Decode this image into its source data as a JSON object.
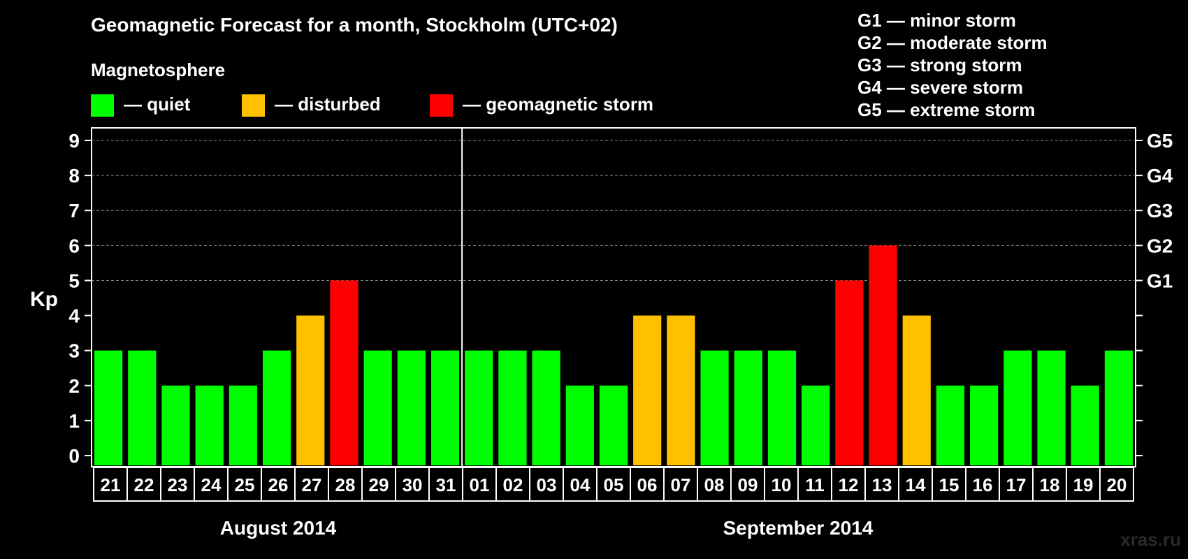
{
  "header": {
    "title": "Geomagnetic Forecast for a month, Stockholm (UTC+02)",
    "subtitle": "Magnetosphere"
  },
  "legend": {
    "items": [
      {
        "label": "— quiet",
        "color": "#00ff00"
      },
      {
        "label": "— disturbed",
        "color": "#ffc000"
      },
      {
        "label": "— geomagnetic storm",
        "color": "#ff0000"
      }
    ]
  },
  "storm_scale": [
    "G1 — minor storm",
    "G2 — moderate storm",
    "G3 — strong storm",
    "G4 — severe storm",
    "G5 — extreme storm"
  ],
  "watermark": "xras.ru",
  "colors": {
    "quiet": "#00ff00",
    "disturbed": "#ffc000",
    "storm": "#ff0000",
    "background": "#000000",
    "axis": "#ffffff"
  },
  "chart_data": {
    "type": "bar",
    "ylabel": "Kp",
    "ylim": [
      0,
      9
    ],
    "yticks": [
      "0",
      "1",
      "2",
      "3",
      "4",
      "5",
      "6",
      "7",
      "8",
      "9"
    ],
    "right_ticks": [
      {
        "kp": 5,
        "label": "G1"
      },
      {
        "kp": 6,
        "label": "G2"
      },
      {
        "kp": 7,
        "label": "G3"
      },
      {
        "kp": 8,
        "label": "G4"
      },
      {
        "kp": 9,
        "label": "G5"
      }
    ],
    "grid": "dashed horizontal at Kp 5-9",
    "categories": [
      "21",
      "22",
      "23",
      "24",
      "25",
      "26",
      "27",
      "28",
      "29",
      "30",
      "31",
      "01",
      "02",
      "03",
      "04",
      "05",
      "06",
      "07",
      "08",
      "09",
      "10",
      "11",
      "12",
      "13",
      "14",
      "15",
      "16",
      "17",
      "18",
      "19",
      "20"
    ],
    "values": [
      3,
      3,
      2,
      2,
      2,
      3,
      4,
      5,
      3,
      3,
      3,
      3,
      3,
      3,
      2,
      2,
      4,
      4,
      3,
      3,
      3,
      2,
      5,
      6,
      4,
      2,
      2,
      3,
      3,
      2,
      3
    ],
    "months": [
      {
        "label": "August 2014",
        "from": 0,
        "to": 10
      },
      {
        "label": "September 2014",
        "from": 11,
        "to": 30
      }
    ]
  }
}
